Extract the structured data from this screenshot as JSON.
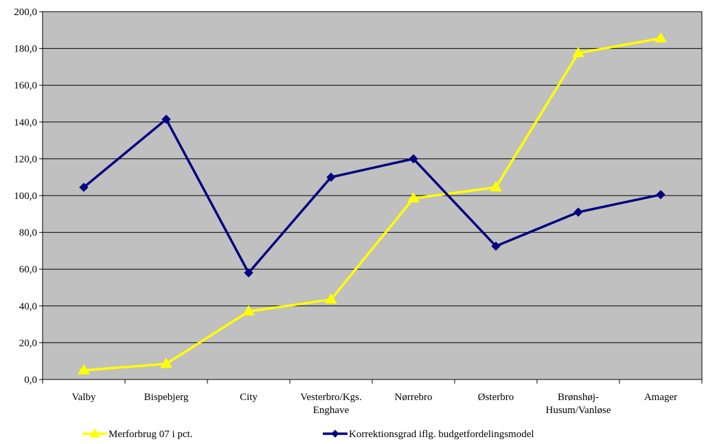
{
  "chart_data": {
    "type": "line",
    "categories": [
      [
        "Valby"
      ],
      [
        "Bispebjerg"
      ],
      [
        "City"
      ],
      [
        "Vesterbro/Kgs.",
        "Enghave"
      ],
      [
        "Nørrebro"
      ],
      [
        "Østerbro"
      ],
      [
        "Brønshøj-",
        "Husum/Vanløse"
      ],
      [
        "Amager"
      ]
    ],
    "series": [
      {
        "name": "Merforbrug 07 i pct.",
        "color": "#FFFF00",
        "marker": "triangle",
        "values": [
          5.0,
          8.5,
          37.0,
          43.5,
          98.5,
          104.5,
          177.5,
          185.5
        ]
      },
      {
        "name": "Korrektionsgrad iflg. budgetfordelingsmodel",
        "color": "#000080",
        "marker": "diamond",
        "values": [
          104.5,
          141.5,
          58.0,
          110.0,
          120.0,
          72.5,
          91.0,
          100.5
        ]
      }
    ],
    "ylim": [
      0,
      200
    ],
    "yticks": [
      "0,0",
      "20,0",
      "40,0",
      "60,0",
      "80,0",
      "100,0",
      "120,0",
      "140,0",
      "160,0",
      "180,0",
      "200,0"
    ],
    "plot_background": "#C0C0C0",
    "grid": true,
    "legend_position": "bottom"
  }
}
